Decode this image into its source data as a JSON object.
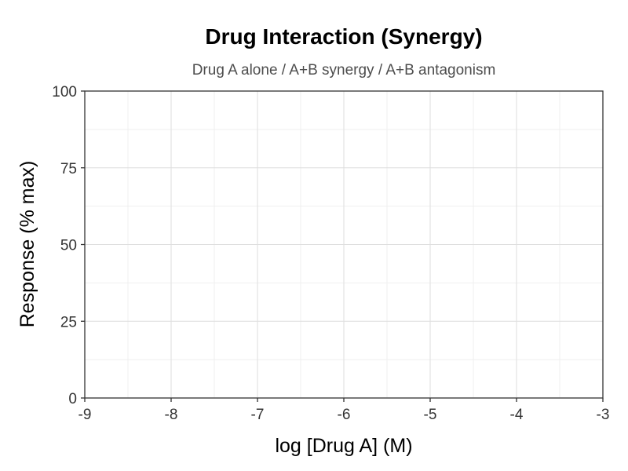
{
  "chart_data": {
    "type": "line",
    "title": "Drug Interaction (Synergy)",
    "subtitle": "Drug A alone / A+B synergy / A+B antagonism",
    "xlabel": "log [Drug A] (M)",
    "ylabel": "Response (% max)",
    "xlim": [
      -9,
      -3
    ],
    "ylim": [
      0,
      100
    ],
    "x_ticks": [
      -9,
      -8,
      -7,
      -6,
      -5,
      -4,
      -3
    ],
    "y_ticks": [
      0,
      25,
      50,
      75,
      100
    ],
    "grid": true,
    "series": []
  }
}
